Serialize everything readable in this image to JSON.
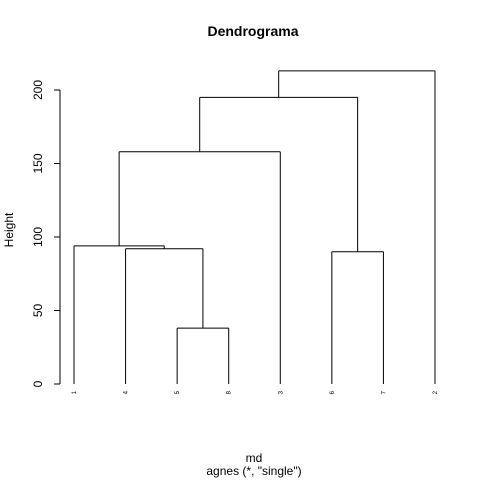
{
  "chart_data": {
    "type": "dendrogram",
    "title": "Dendrograma",
    "ylabel": "Height",
    "xlabel": "md",
    "subtitle": "agnes (*, \"single\")",
    "ylim": [
      0,
      220
    ],
    "y_ticks": [
      0,
      50,
      100,
      150,
      200
    ],
    "leaves": [
      "1",
      "4",
      "5",
      "8",
      "3",
      "6",
      "7",
      "2"
    ],
    "merges": [
      {
        "left": "5",
        "right": "8",
        "height": 38
      },
      {
        "left": "4",
        "right": "5-8",
        "height": 92
      },
      {
        "left": "1",
        "right": "4-5-8",
        "height": 94
      },
      {
        "left": "1-4-5-8",
        "right": "3",
        "height": 158
      },
      {
        "left": "6",
        "right": "7",
        "height": 90
      },
      {
        "left": "1-4-5-8-3",
        "right": "6-7",
        "height": 195
      },
      {
        "left": "1-4-5-8-3-6-7",
        "right": "2",
        "height": 213
      }
    ]
  }
}
